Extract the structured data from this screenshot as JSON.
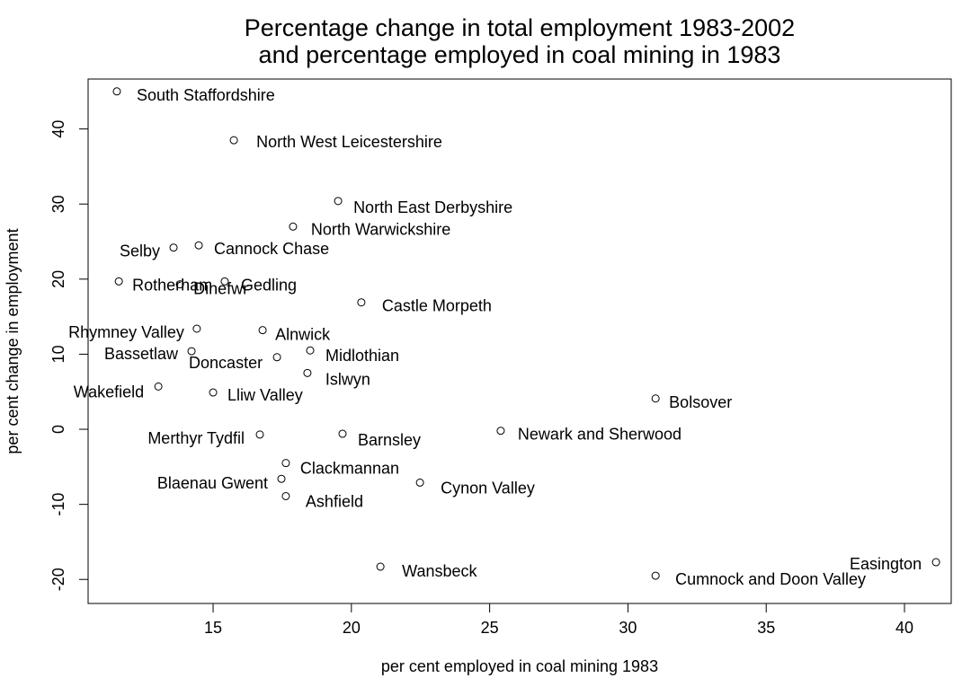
{
  "chart_data": {
    "type": "scatter",
    "title": [
      "Percentage change in total employment 1983-2002",
      "and percentage employed in coal mining in 1983"
    ],
    "x_label": "per cent employed in coal mining 1983",
    "y_label": "per cent change in employment",
    "xlim": [
      10.48,
      41.69
    ],
    "ylim": [
      -23.2,
      46.65
    ],
    "xticks": [
      15,
      20,
      25,
      30,
      35,
      40
    ],
    "yticks": [
      -20,
      -10,
      0,
      10,
      20,
      30,
      40
    ],
    "color": "#000000",
    "series": [
      {
        "name": null,
        "labels": [
          "South Staffordshire",
          "North West Leicestershire",
          "North East Derbyshire",
          "North Warwickshire",
          "Selby",
          "Cannock Chase",
          "Rotherham",
          "Dinefwr",
          "Gedling",
          "Castle Morpeth",
          "Rhymney Valley",
          "Alnwick",
          "Bassetlaw",
          "Midlothian",
          "Doncaster",
          "Islwyn",
          "Wakefield",
          "Lliw Valley",
          "Bolsover",
          "Newark and Sherwood",
          "Merthyr Tydfil",
          "Barnsley",
          "Clackmannan",
          "Blaenau Gwent",
          "Cynon Valley",
          "Ashfield",
          "Wansbeck",
          "Cumnock and Doon Valley",
          "Easington"
        ],
        "x": [
          11.52,
          15.75,
          19.52,
          17.89,
          13.57,
          14.48,
          11.59,
          13.8,
          15.42,
          20.36,
          14.41,
          16.79,
          14.22,
          18.51,
          17.31,
          18.41,
          13.02,
          15.0,
          31.0,
          25.4,
          16.69,
          19.68,
          17.63,
          17.47,
          22.48,
          17.63,
          21.05,
          31.0,
          41.14
        ],
        "values": [
          45.0,
          38.5,
          30.4,
          27.0,
          24.2,
          24.5,
          19.7,
          19.3,
          19.7,
          16.9,
          13.4,
          13.2,
          10.4,
          10.5,
          9.6,
          7.5,
          5.7,
          4.9,
          4.1,
          -0.2,
          -0.7,
          -0.6,
          -4.5,
          -6.6,
          -7.1,
          -8.9,
          -18.3,
          -19.5,
          -17.7
        ]
      }
    ]
  }
}
